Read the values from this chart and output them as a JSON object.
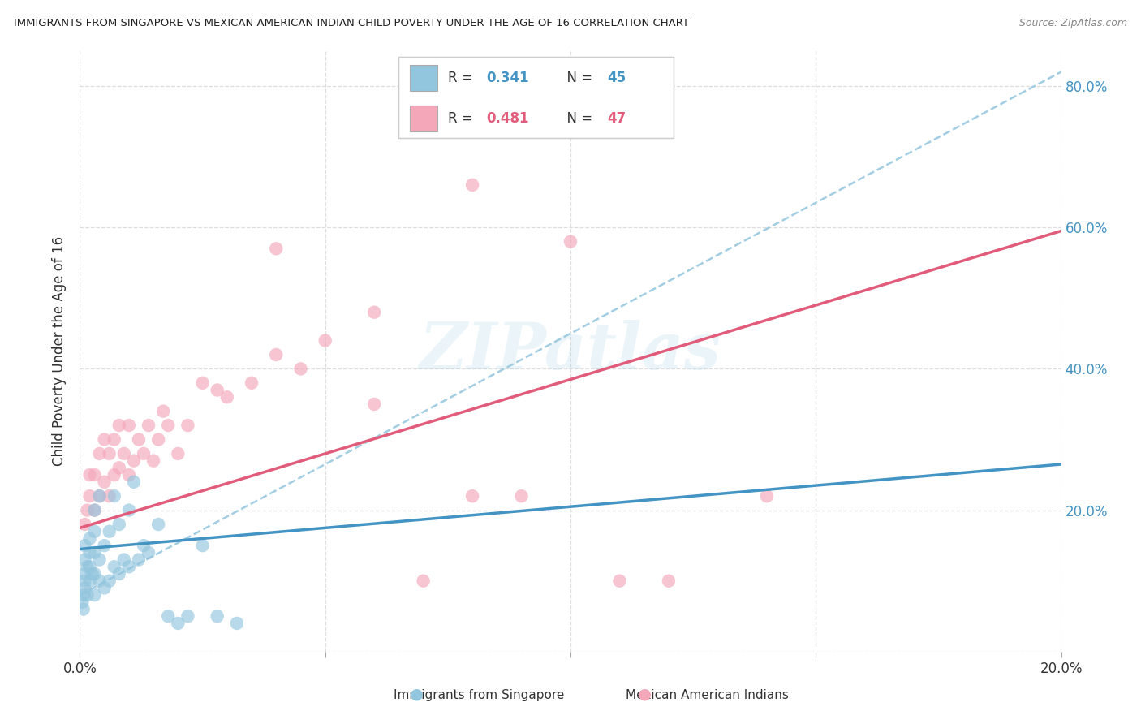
{
  "title": "IMMIGRANTS FROM SINGAPORE VS MEXICAN AMERICAN INDIAN CHILD POVERTY UNDER THE AGE OF 16 CORRELATION CHART",
  "source": "Source: ZipAtlas.com",
  "ylabel": "Child Poverty Under the Age of 16",
  "xlim": [
    0.0,
    0.2
  ],
  "ylim": [
    0.0,
    0.85
  ],
  "ytick_vals": [
    0.0,
    0.2,
    0.4,
    0.6,
    0.8
  ],
  "ytick_labels": [
    "",
    "20.0%",
    "40.0%",
    "60.0%",
    "80.0%"
  ],
  "xtick_vals": [
    0.0,
    0.05,
    0.1,
    0.15,
    0.2
  ],
  "xtick_labels": [
    "0.0%",
    "",
    "",
    "",
    "20.0%"
  ],
  "watermark": "ZIPatlas",
  "blue_color": "#92c5de",
  "pink_color": "#f4a7b9",
  "blue_line_color": "#4393c3",
  "pink_line_color": "#e05c7a",
  "blue_dash_color": "#92c5de",
  "tick_color": "#4393c3",
  "background_color": "#ffffff",
  "grid_color": "#dddddd",
  "singapore_x": [
    0.0005,
    0.0007,
    0.0008,
    0.001,
    0.001,
    0.001,
    0.001,
    0.001,
    0.0015,
    0.0015,
    0.002,
    0.002,
    0.002,
    0.002,
    0.0025,
    0.003,
    0.003,
    0.003,
    0.003,
    0.003,
    0.004,
    0.004,
    0.004,
    0.005,
    0.005,
    0.006,
    0.006,
    0.007,
    0.007,
    0.008,
    0.008,
    0.009,
    0.01,
    0.01,
    0.011,
    0.012,
    0.013,
    0.014,
    0.016,
    0.018,
    0.02,
    0.022,
    0.025,
    0.028,
    0.032
  ],
  "singapore_y": [
    0.07,
    0.06,
    0.08,
    0.09,
    0.1,
    0.11,
    0.13,
    0.15,
    0.08,
    0.12,
    0.1,
    0.12,
    0.14,
    0.16,
    0.11,
    0.08,
    0.11,
    0.14,
    0.17,
    0.2,
    0.1,
    0.13,
    0.22,
    0.09,
    0.15,
    0.1,
    0.17,
    0.12,
    0.22,
    0.11,
    0.18,
    0.13,
    0.12,
    0.2,
    0.24,
    0.13,
    0.15,
    0.14,
    0.18,
    0.05,
    0.04,
    0.05,
    0.15,
    0.05,
    0.04
  ],
  "mex_x": [
    0.001,
    0.0015,
    0.002,
    0.002,
    0.003,
    0.003,
    0.004,
    0.004,
    0.005,
    0.005,
    0.006,
    0.006,
    0.007,
    0.007,
    0.008,
    0.008,
    0.009,
    0.01,
    0.01,
    0.011,
    0.012,
    0.013,
    0.014,
    0.015,
    0.016,
    0.017,
    0.018,
    0.02,
    0.022,
    0.025,
    0.028,
    0.03,
    0.035,
    0.04,
    0.045,
    0.05,
    0.06,
    0.07,
    0.08,
    0.09,
    0.04,
    0.06,
    0.08,
    0.1,
    0.11,
    0.12,
    0.14
  ],
  "mex_y": [
    0.18,
    0.2,
    0.22,
    0.25,
    0.2,
    0.25,
    0.22,
    0.28,
    0.24,
    0.3,
    0.22,
    0.28,
    0.25,
    0.3,
    0.26,
    0.32,
    0.28,
    0.25,
    0.32,
    0.27,
    0.3,
    0.28,
    0.32,
    0.27,
    0.3,
    0.34,
    0.32,
    0.28,
    0.32,
    0.38,
    0.37,
    0.36,
    0.38,
    0.42,
    0.4,
    0.44,
    0.35,
    0.1,
    0.22,
    0.22,
    0.57,
    0.48,
    0.66,
    0.58,
    0.1,
    0.1,
    0.22
  ],
  "blue_line_x0": 0.0,
  "blue_line_y0": 0.145,
  "blue_line_x1": 0.2,
  "blue_line_y1": 0.265,
  "pink_line_x0": 0.0,
  "pink_line_y0": 0.175,
  "pink_line_x1": 0.2,
  "pink_line_y1": 0.595,
  "dash_line_x0": 0.0,
  "dash_line_y0": 0.08,
  "dash_line_x1": 0.2,
  "dash_line_y1": 0.82
}
